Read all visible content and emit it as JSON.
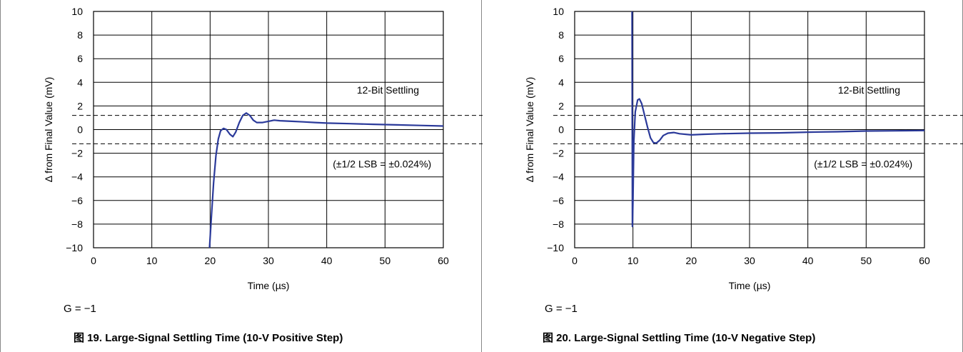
{
  "chart_data": [
    {
      "type": "line",
      "figure_number": "图 19.",
      "caption": "Large-Signal Settling Time (10-V Positive Step)",
      "gain_note": "G = −1",
      "xlabel": "Time (µs)",
      "ylabel": "Δ from Final Value (mV)",
      "xlim": [
        0,
        60
      ],
      "ylim": [
        -10,
        10
      ],
      "x_ticks": [
        "0",
        "10",
        "20",
        "30",
        "40",
        "50",
        "60"
      ],
      "y_ticks": [
        "10",
        "8",
        "6",
        "4",
        "2",
        "0",
        "−2",
        "−4",
        "−6",
        "−8",
        "−10"
      ],
      "grid": true,
      "annotations": [
        "12-Bit Settling",
        "(±1/2 LSB = ±0.024%)"
      ],
      "settling_band": [
        1.2,
        -1.2
      ],
      "series": [
        {
          "color": "#2b3a9a",
          "points": [
            [
              19.9,
              -10
            ],
            [
              20.2,
              -7.5
            ],
            [
              20.6,
              -4.5
            ],
            [
              21.0,
              -2.2
            ],
            [
              21.4,
              -0.8
            ],
            [
              21.8,
              -0.1
            ],
            [
              22.3,
              0.1
            ],
            [
              22.8,
              0
            ],
            [
              23.4,
              -0.4
            ],
            [
              23.9,
              -0.6
            ],
            [
              24.4,
              -0.2
            ],
            [
              25.0,
              0.6
            ],
            [
              25.6,
              1.2
            ],
            [
              26.2,
              1.4
            ],
            [
              26.8,
              1.2
            ],
            [
              27.4,
              0.8
            ],
            [
              28.0,
              0.6
            ],
            [
              29.0,
              0.6
            ],
            [
              30.0,
              0.7
            ],
            [
              31.0,
              0.8
            ],
            [
              32.0,
              0.75
            ],
            [
              34.0,
              0.7
            ],
            [
              36.0,
              0.65
            ],
            [
              38.0,
              0.6
            ],
            [
              40.0,
              0.55
            ],
            [
              44.0,
              0.5
            ],
            [
              48.0,
              0.45
            ],
            [
              52.0,
              0.4
            ],
            [
              56.0,
              0.35
            ],
            [
              60.0,
              0.3
            ]
          ]
        }
      ]
    },
    {
      "type": "line",
      "figure_number": "图 20.",
      "caption": "Large-Signal Settling Time (10-V Negative Step)",
      "gain_note": "G = −1",
      "xlabel": "Time (µs)",
      "ylabel": "Δ from Final Value (mV)",
      "xlim": [
        0,
        60
      ],
      "ylim": [
        -10,
        10
      ],
      "x_ticks": [
        "0",
        "10",
        "20",
        "30",
        "40",
        "50",
        "60"
      ],
      "y_ticks": [
        "10",
        "8",
        "6",
        "4",
        "2",
        "0",
        "−2",
        "−4",
        "−6",
        "−8",
        "−10"
      ],
      "grid": true,
      "annotations": [
        "12-Bit Settling",
        "(±1/2 LSB = ±0.024%)"
      ],
      "settling_band": [
        1.2,
        -1.2
      ],
      "series": [
        {
          "color": "#2b3a9a",
          "points": [
            [
              9.85,
              10
            ],
            [
              9.9,
              -8.2
            ],
            [
              10.0,
              -6
            ],
            [
              10.15,
              -1
            ],
            [
              10.4,
              1.5
            ],
            [
              10.8,
              2.5
            ],
            [
              11.1,
              2.6
            ],
            [
              11.5,
              2.2
            ],
            [
              12.0,
              1.2
            ],
            [
              12.5,
              0.2
            ],
            [
              13.0,
              -0.7
            ],
            [
              13.5,
              -1.1
            ],
            [
              14.0,
              -1.15
            ],
            [
              14.6,
              -0.9
            ],
            [
              15.2,
              -0.5
            ],
            [
              16.0,
              -0.3
            ],
            [
              17.0,
              -0.25
            ],
            [
              18.0,
              -0.35
            ],
            [
              20.0,
              -0.45
            ],
            [
              22.0,
              -0.4
            ],
            [
              25.0,
              -0.35
            ],
            [
              30.0,
              -0.3
            ],
            [
              35.0,
              -0.28
            ],
            [
              40.0,
              -0.22
            ],
            [
              45.0,
              -0.18
            ],
            [
              50.0,
              -0.12
            ],
            [
              55.0,
              -0.1
            ],
            [
              60.0,
              -0.08
            ]
          ]
        }
      ]
    }
  ]
}
